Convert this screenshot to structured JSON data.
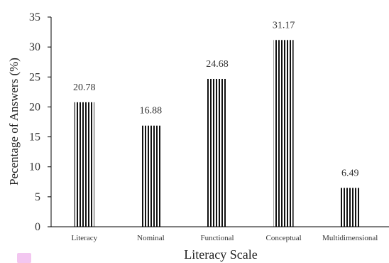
{
  "chart_data": {
    "type": "bar",
    "categories": [
      "Literacy",
      "Nominal",
      "Functional",
      "Conceptual",
      "Multidimensional"
    ],
    "values": [
      20.78,
      16.88,
      24.68,
      31.17,
      6.49
    ],
    "data_labels": [
      "20.78",
      "16.88",
      "24.68",
      "31.17",
      "6.49"
    ],
    "title": "",
    "xlabel": "Literacy Scale",
    "ylabel": "Pecentage of Answers (%)",
    "ylim": [
      0,
      35
    ],
    "yticks": [
      0,
      5,
      10,
      15,
      20,
      25,
      30,
      35
    ],
    "grid": false,
    "legend": "none",
    "bar_pattern": "vertical-stripes",
    "colors": {
      "bar_stripe": "#111111",
      "bar_bg": "#ffffff",
      "axis": "#000000",
      "text": "#333333"
    }
  }
}
